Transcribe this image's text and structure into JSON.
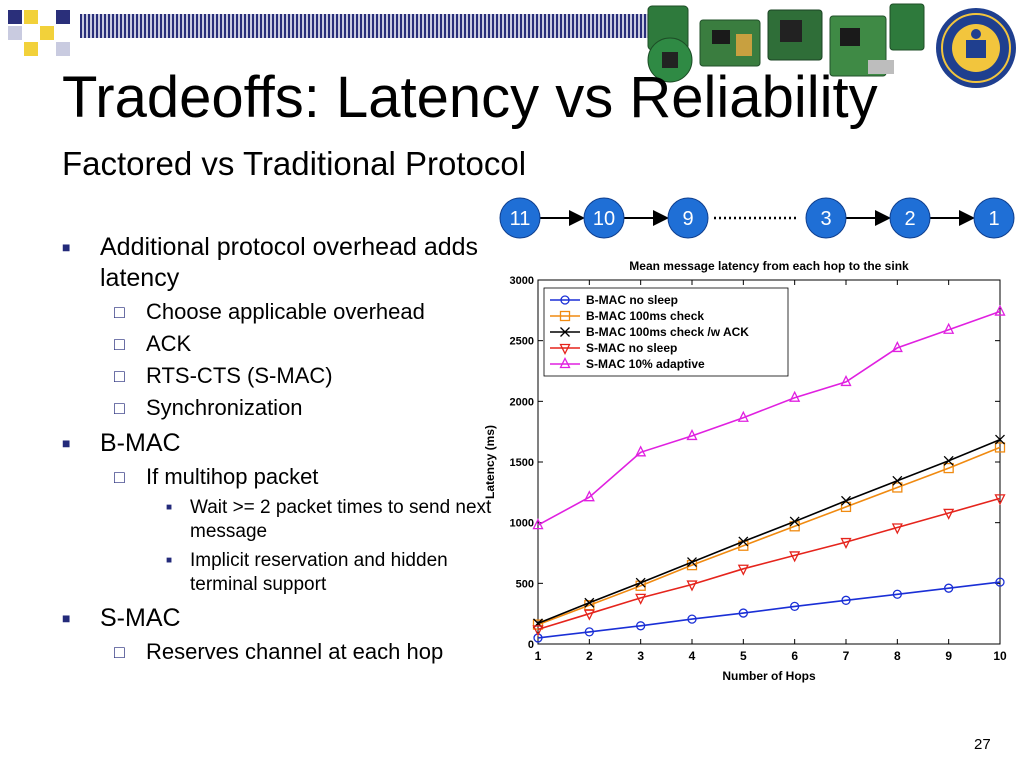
{
  "slide": {
    "title": "Tradeoffs: Latency vs Reliability",
    "subtitle": "Factored vs Traditional Protocol",
    "page_number": "27"
  },
  "bullets": [
    {
      "level": 1,
      "text": "Additional protocol overhead adds latency"
    },
    {
      "level": 2,
      "text": "Choose applicable overhead"
    },
    {
      "level": 2,
      "text": "ACK"
    },
    {
      "level": 2,
      "text": "RTS-CTS (S-MAC)"
    },
    {
      "level": 2,
      "text": "Synchronization"
    },
    {
      "level": 1,
      "text": "B-MAC"
    },
    {
      "level": 2,
      "text": "If multihop packet"
    },
    {
      "level": 3,
      "text": "Wait >= 2 packet times to send next message"
    },
    {
      "level": 3,
      "text": "Implicit reservation and hidden terminal support"
    },
    {
      "level": 1,
      "text": "S-MAC"
    },
    {
      "level": 2,
      "text": "Reserves channel at each hop"
    }
  ],
  "hop_diagram": {
    "nodes": [
      "11",
      "10",
      "9",
      "3",
      "2",
      "1"
    ],
    "node_fill": "#1f6fd6",
    "node_text_color": "#ffffff"
  },
  "colors": {
    "bullet_marker": "#232a7a",
    "deco_dark": "#2a2f7a",
    "deco_yellow": "#f2d13a"
  },
  "chart_data": {
    "type": "line",
    "title": "Mean message latency from each hop to the sink",
    "xlabel": "Number of Hops",
    "ylabel": "Latency (ms)",
    "x": [
      1,
      2,
      3,
      4,
      5,
      6,
      7,
      8,
      9,
      10
    ],
    "xlim": [
      1,
      10
    ],
    "ylim": [
      0,
      3000
    ],
    "yticks": [
      0,
      500,
      1000,
      1500,
      2000,
      2500,
      3000
    ],
    "grid": false,
    "legend_position": "top-left",
    "series": [
      {
        "name": "B-MAC no sleep",
        "color": "#1a2fd6",
        "marker": "circle",
        "values": [
          50,
          100,
          150,
          205,
          255,
          310,
          360,
          410,
          460,
          510
        ]
      },
      {
        "name": "B-MAC 100ms check",
        "color": "#f08a10",
        "marker": "square",
        "values": [
          160,
          320,
          480,
          650,
          810,
          970,
          1130,
          1290,
          1450,
          1620
        ]
      },
      {
        "name": "B-MAC 100ms check /w ACK",
        "color": "#000000",
        "marker": "x",
        "values": [
          170,
          340,
          505,
          675,
          845,
          1010,
          1180,
          1345,
          1510,
          1685
        ]
      },
      {
        "name": "S-MAC no sleep",
        "color": "#e5241c",
        "marker": "triangle-down",
        "values": [
          120,
          250,
          380,
          490,
          620,
          730,
          840,
          960,
          1080,
          1200
        ]
      },
      {
        "name": "S-MAC 10% adaptive",
        "color": "#e020e0",
        "marker": "triangle-up",
        "values": [
          980,
          1210,
          1580,
          1715,
          1865,
          2030,
          2160,
          2440,
          2590,
          2740
        ]
      }
    ]
  }
}
